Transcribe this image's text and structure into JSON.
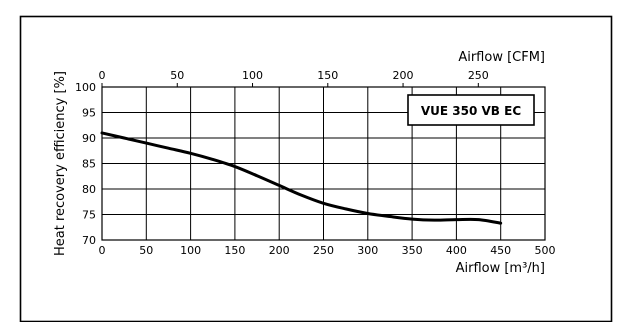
{
  "chart_data": {
    "type": "line",
    "title": "",
    "xlabel": "Airflow [m³/h]",
    "x2label": "Airflow [CFM]",
    "ylabel": "Heat recovery efficiency [%]",
    "xlim": [
      0,
      500
    ],
    "ylim": [
      70,
      100
    ],
    "x2lim": [
      0,
      294.3
    ],
    "x_ticks": [
      0,
      50,
      100,
      150,
      200,
      250,
      300,
      350,
      400,
      450,
      500
    ],
    "x2_ticks": [
      0,
      50,
      100,
      150,
      200,
      250
    ],
    "y_ticks": [
      70,
      75,
      80,
      85,
      90,
      95,
      100
    ],
    "grid": true,
    "legend_position": "top-right",
    "series": [
      {
        "name": "VUE 350 VB EC",
        "color": "#000000",
        "x": [
          0,
          25,
          50,
          75,
          100,
          125,
          150,
          175,
          200,
          225,
          250,
          275,
          300,
          325,
          350,
          375,
          400,
          425,
          450
        ],
        "y": [
          91,
          90.0,
          89.0,
          88.0,
          87.0,
          85.8,
          84.4,
          82.6,
          80.7,
          78.8,
          77.2,
          76.1,
          75.2,
          74.6,
          74.1,
          73.9,
          74.0,
          74.0,
          73.3
        ]
      }
    ]
  }
}
